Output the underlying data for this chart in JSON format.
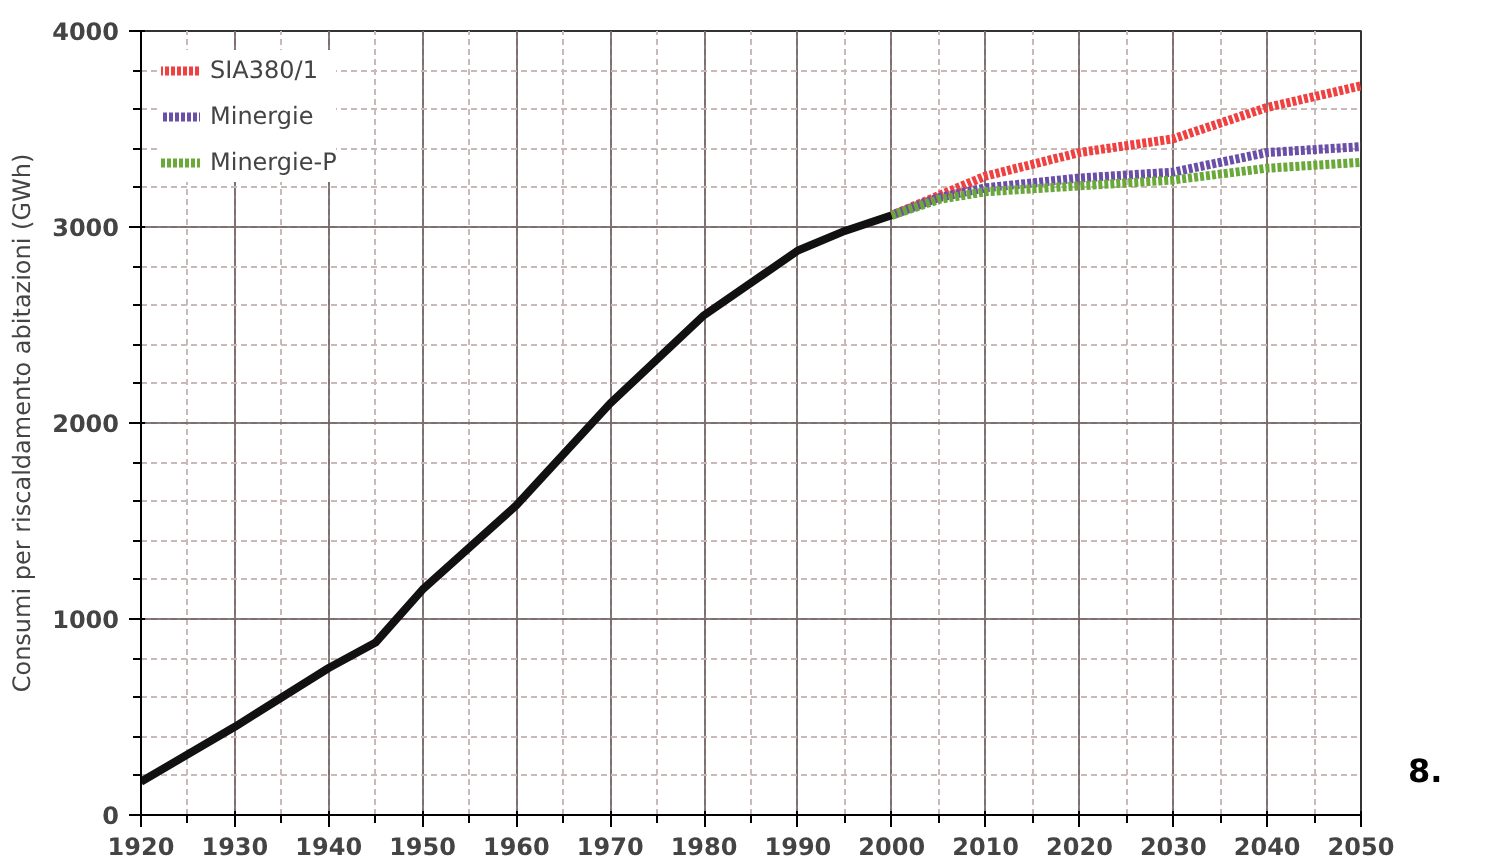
{
  "chart_data": {
    "type": "line",
    "ylabel": "Consumi per riscaldamento abitazioni (GWh)",
    "xlim": [
      1920,
      2050
    ],
    "xticks": [
      1920,
      1930,
      1940,
      1950,
      1960,
      1970,
      1980,
      1990,
      2000,
      2010,
      2020,
      2030,
      2040,
      2050
    ],
    "ylim": [
      0,
      4000
    ],
    "yticks": [
      0,
      1000,
      2000,
      3000,
      4000
    ],
    "grid": true,
    "legend": "top left",
    "annotations": [
      "8."
    ],
    "series": [
      {
        "color": "#111111",
        "line_style": "solid",
        "x": [
          1920,
          1930,
          1940,
          1945,
          1950,
          1960,
          1970,
          1980,
          1990,
          1995,
          2000
        ],
        "values": [
          170,
          450,
          750,
          880,
          1150,
          1580,
          2100,
          2550,
          2880,
          2980,
          3060
        ]
      },
      {
        "name": "SIA380/1",
        "color": "#f04040",
        "line_style": "dotted",
        "x": [
          2000,
          2005,
          2010,
          2020,
          2030,
          2040,
          2050
        ],
        "values": [
          3060,
          3160,
          3260,
          3380,
          3450,
          3610,
          3720
        ]
      },
      {
        "name": "Minergie",
        "color": "#6a4fa8",
        "line_style": "dotted",
        "x": [
          2000,
          2005,
          2010,
          2020,
          2030,
          2040,
          2050
        ],
        "values": [
          3060,
          3150,
          3200,
          3250,
          3280,
          3380,
          3410
        ]
      },
      {
        "name": "Minergie-P",
        "color": "#6aa83a",
        "line_style": "dotted",
        "x": [
          2000,
          2005,
          2010,
          2020,
          2030,
          2040,
          2050
        ],
        "values": [
          3060,
          3140,
          3180,
          3210,
          3240,
          3300,
          3330
        ]
      }
    ]
  }
}
